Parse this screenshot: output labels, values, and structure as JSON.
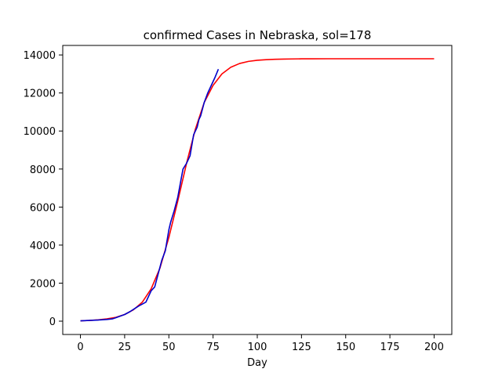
{
  "chart_data": {
    "type": "line",
    "title": "confirmed Cases in Nebraska, sol=178",
    "xlabel": "Day",
    "ylabel": "",
    "xlim": [
      -10,
      210
    ],
    "ylim": [
      -700,
      14500
    ],
    "xticks": [
      0,
      25,
      50,
      75,
      100,
      125,
      150,
      175,
      200
    ],
    "yticks": [
      0,
      2000,
      4000,
      6000,
      8000,
      10000,
      12000,
      14000
    ],
    "grid": false,
    "series": [
      {
        "color": "#ff0000",
        "x": [
          0,
          5,
          10,
          15,
          20,
          25,
          30,
          35,
          40,
          45,
          50,
          55,
          60,
          65,
          70,
          75,
          80,
          85,
          90,
          95,
          100,
          105,
          110,
          115,
          120,
          125,
          130,
          140,
          150,
          160,
          170,
          180,
          190,
          200
        ],
        "values": [
          20,
          40,
          70,
          120,
          200,
          350,
          600,
          1000,
          1700,
          2800,
          4400,
          6300,
          8300,
          10100,
          11500,
          12400,
          13000,
          13350,
          13550,
          13660,
          13720,
          13750,
          13770,
          13780,
          13790,
          13795,
          13798,
          13800,
          13800,
          13800,
          13800,
          13800,
          13800,
          13800
        ]
      },
      {
        "color": "#0000cc",
        "x": [
          0,
          5,
          10,
          15,
          18,
          20,
          25,
          28,
          30,
          33,
          35,
          37,
          38,
          40,
          42,
          44,
          46,
          48,
          50,
          51,
          53,
          55,
          57,
          58,
          60,
          62,
          64,
          66,
          67,
          68,
          70,
          72,
          74,
          76,
          78
        ],
        "values": [
          20,
          40,
          60,
          90,
          120,
          180,
          350,
          500,
          620,
          800,
          900,
          1000,
          1200,
          1600,
          1800,
          2500,
          3200,
          3700,
          4800,
          5200,
          5800,
          6500,
          7500,
          8000,
          8300,
          8700,
          9800,
          10200,
          10600,
          10800,
          11500,
          12000,
          12400,
          12800,
          13250
        ]
      }
    ]
  }
}
